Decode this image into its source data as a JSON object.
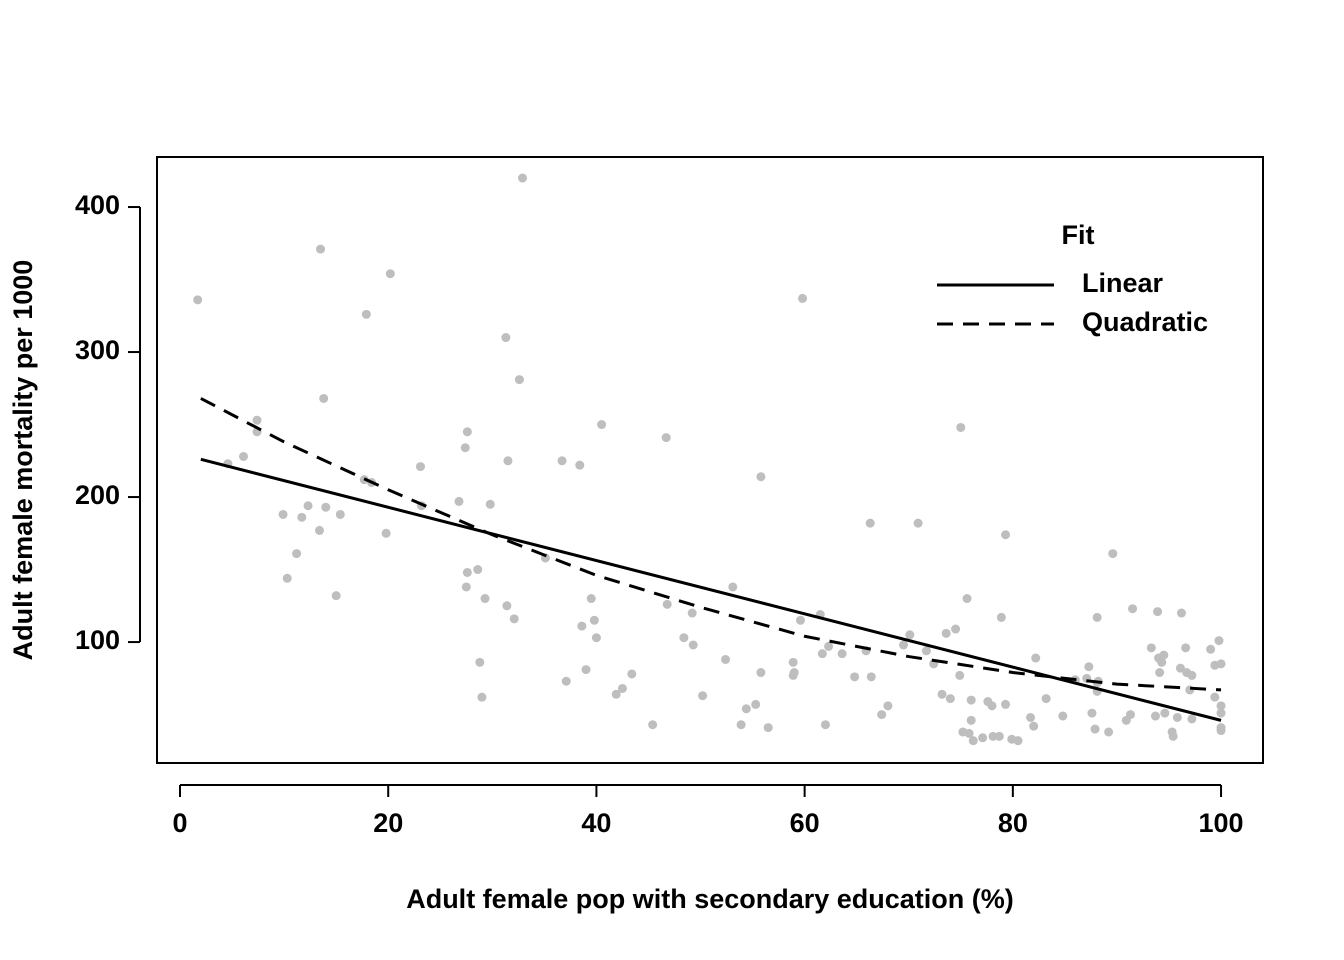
{
  "chart_data": {
    "type": "scatter",
    "x_label": "Adult female pop with secondary education (%)",
    "y_label": "Adult female mortality per 1000",
    "xlim": [
      -2.21,
      104.03
    ],
    "ylim": [
      16.6,
      434.5
    ],
    "xticks": [
      0,
      20,
      40,
      60,
      80,
      100
    ],
    "yticks": [
      100,
      200,
      300,
      400
    ],
    "color": "#bebebe",
    "x": [
      1.7,
      4.6,
      6.1,
      7.4,
      7.4,
      9.9,
      10.3,
      11.2,
      11.7,
      12.3,
      13.4,
      14.0,
      13.5,
      13.8,
      15.0,
      15.4,
      17.9,
      17.7,
      18.4,
      20.2,
      19.8,
      23.1,
      23.2,
      26.8,
      27.6,
      27.4,
      27.6,
      27.5,
      28.6,
      28.8,
      29.0,
      29.3,
      29.8,
      31.3,
      31.5,
      31.4,
      32.1,
      32.6,
      32.9,
      35.1,
      36.7,
      37.1,
      38.4,
      38.6,
      39.0,
      39.5,
      39.8,
      40.0,
      40.5,
      41.9,
      42.5,
      43.4,
      45.4,
      46.8,
      46.7,
      48.4,
      49.3,
      49.2,
      50.2,
      52.4,
      53.1,
      53.9,
      54.4,
      55.3,
      55.8,
      55.8,
      56.5,
      58.9,
      59.0,
      58.9,
      59.8,
      59.6,
      61.5,
      61.7,
      62.3,
      62.0,
      63.6,
      64.8,
      65.9,
      66.3,
      66.4,
      67.4,
      68.0,
      69.5,
      70.1,
      70.9,
      71.7,
      72.4,
      73.2,
      73.6,
      74.0,
      74.5,
      75.0,
      74.9,
      75.2,
      75.6,
      75.8,
      76.0,
      76.0,
      76.2,
      77.1,
      77.6,
      78.0,
      78.1,
      78.7,
      78.9,
      79.3,
      79.3,
      79.9,
      80.5,
      81.7,
      82.0,
      82.2,
      83.2,
      84.8,
      86.0,
      87.1,
      87.3,
      87.6,
      87.9,
      88.1,
      88.1,
      88.1,
      88.2,
      89.2,
      89.6,
      90.9,
      91.3,
      91.5,
      93.3,
      93.7,
      93.9,
      94.0,
      94.1,
      94.3,
      94.5,
      94.6,
      95.3,
      95.4,
      95.8,
      96.2,
      96.1,
      96.6,
      96.7,
      97.0,
      97.2,
      97.2,
      99.0,
      99.4,
      99.8,
      100,
      100,
      100,
      100,
      100,
      99.4
    ],
    "values": [
      336,
      223,
      228,
      253,
      245,
      188,
      144,
      161,
      186,
      194,
      177,
      193,
      371,
      268,
      132,
      188,
      326,
      212,
      210,
      354,
      175,
      221,
      194,
      197,
      245,
      234,
      148,
      138,
      150,
      86,
      62,
      130,
      195,
      310,
      225,
      125,
      116,
      281,
      420,
      158,
      225,
      73,
      222,
      111,
      81,
      130,
      115,
      103,
      250,
      64,
      68,
      78,
      43,
      126,
      241,
      103,
      98,
      120,
      63,
      88,
      138,
      43,
      54,
      57,
      79,
      214,
      41,
      86,
      79,
      77,
      337,
      115,
      119,
      92,
      97,
      43,
      92,
      76,
      94,
      182,
      76,
      50,
      56,
      98,
      105,
      182,
      94,
      85,
      64,
      106,
      61,
      109,
      248,
      77,
      38,
      130,
      37,
      60,
      46,
      32,
      34,
      59,
      56,
      35,
      35,
      117,
      57,
      174,
      33,
      32,
      48,
      42,
      89,
      61,
      49,
      74,
      75,
      83,
      51,
      40,
      72,
      66,
      117,
      73,
      38,
      161,
      46,
      50,
      123,
      96,
      49,
      121,
      89,
      79,
      86,
      91,
      51,
      38,
      35,
      48,
      120,
      82,
      96,
      79,
      67,
      77,
      47,
      95,
      84,
      101,
      85,
      56,
      51,
      41,
      39,
      62
    ],
    "legend_title": "Fit",
    "legend_position": "top-right",
    "series": [
      {
        "name": "Linear",
        "color": "#000000",
        "dashed": false,
        "x": [
          2,
          100
        ],
        "values": [
          226,
          46
        ]
      },
      {
        "name": "Quadratic",
        "color": "#000000",
        "dashed": true,
        "x": [
          2,
          10,
          20,
          30,
          40,
          50,
          60,
          70,
          80,
          90,
          100
        ],
        "values": [
          268,
          238,
          205,
          174,
          146,
          124,
          104,
          90,
          79,
          71,
          67
        ]
      }
    ]
  }
}
